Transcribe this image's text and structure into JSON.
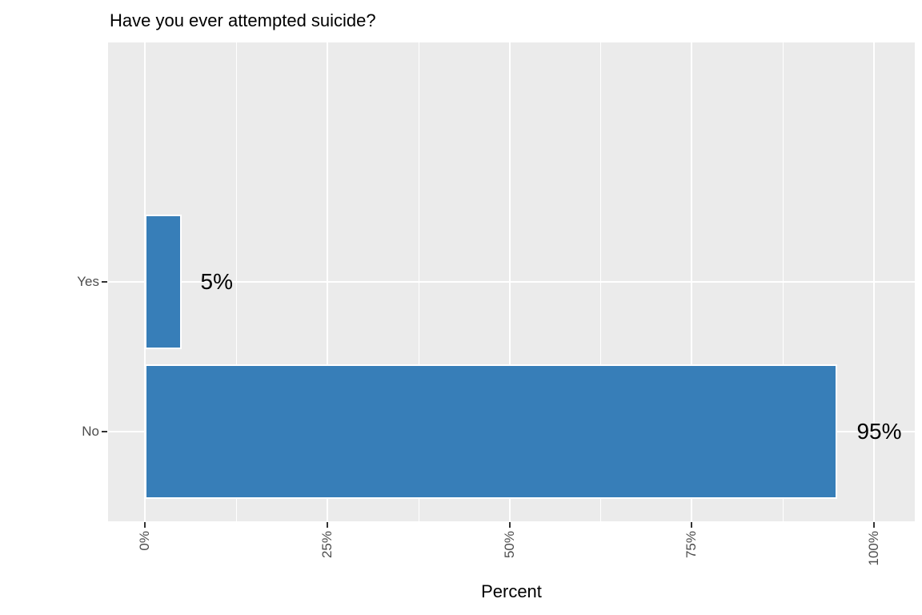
{
  "chart_data": {
    "type": "bar",
    "orientation": "horizontal",
    "title": "Have you ever attempted suicide?",
    "xlabel": "Percent",
    "ylabel": "",
    "categories": [
      "Yes",
      "No"
    ],
    "values": [
      5,
      95
    ],
    "value_labels": [
      "5%",
      "95%"
    ],
    "xlim": [
      0,
      100
    ],
    "x_ticks": [
      {
        "pct": 0,
        "label": "0%"
      },
      {
        "pct": 25,
        "label": "25%"
      },
      {
        "pct": 50,
        "label": "50%"
      },
      {
        "pct": 75,
        "label": "75%"
      },
      {
        "pct": 100,
        "label": "100%"
      }
    ],
    "grid": "white major and minor vertical gridlines, white major horizontal gridlines on gray panel",
    "legend": "none"
  },
  "colors": {
    "page_bg": "#FFFFFF",
    "panel_bg": "#EBEBEB",
    "grid": "#FFFFFF",
    "bar_fill": "#377EB8",
    "bar_border": "#FFFFFF",
    "axis_text": "#4D4D4D",
    "tick_mark": "#333333",
    "title_text": "#000000"
  }
}
